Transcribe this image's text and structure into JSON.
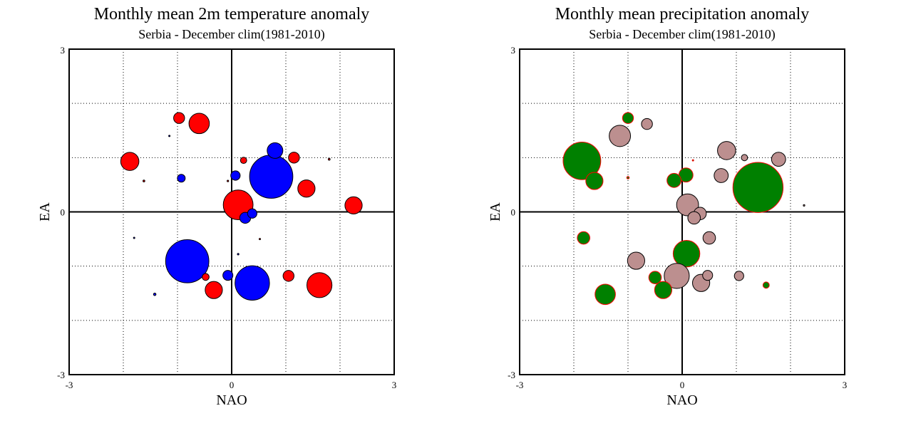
{
  "chart_data": [
    {
      "type": "scatter",
      "title": "Monthly mean 2m temperature anomaly",
      "subtitle": "Serbia - December  clim(1981-2010)",
      "xlabel": "NAO",
      "ylabel": "EA",
      "xlim": [
        -3,
        3
      ],
      "ylim": [
        -3,
        3
      ],
      "xticks": [
        "-3",
        "0",
        "3"
      ],
      "yticks": [
        "-3",
        "0",
        "3"
      ],
      "grid": true,
      "bubble_fill": "size-scaled circles",
      "colors": {
        "positive": "#ff0000",
        "negative": "#0000ff",
        "outline": "#000000"
      },
      "points": [
        {
          "x": -0.97,
          "y": 1.73,
          "size": 0.35,
          "sign": "positive"
        },
        {
          "x": -0.6,
          "y": 1.63,
          "size": 0.65,
          "sign": "positive"
        },
        {
          "x": -1.15,
          "y": 1.4,
          "size": 0.04,
          "sign": "negative"
        },
        {
          "x": -1.88,
          "y": 0.93,
          "size": 0.58,
          "sign": "positive"
        },
        {
          "x": -1.62,
          "y": 0.57,
          "size": 0.06,
          "sign": "positive"
        },
        {
          "x": -0.93,
          "y": 0.62,
          "size": 0.25,
          "sign": "negative"
        },
        {
          "x": 0.8,
          "y": 1.13,
          "size": 0.5,
          "sign": "negative"
        },
        {
          "x": 1.15,
          "y": 1.0,
          "size": 0.35,
          "sign": "positive"
        },
        {
          "x": 1.8,
          "y": 0.97,
          "size": 0.06,
          "sign": "positive"
        },
        {
          "x": 0.22,
          "y": 0.95,
          "size": 0.2,
          "sign": "positive"
        },
        {
          "x": 0.07,
          "y": 0.67,
          "size": 0.3,
          "sign": "negative"
        },
        {
          "x": -0.07,
          "y": 0.57,
          "size": 0.05,
          "sign": "positive"
        },
        {
          "x": 0.73,
          "y": 0.65,
          "size": 1.38,
          "sign": "negative"
        },
        {
          "x": 1.38,
          "y": 0.43,
          "size": 0.55,
          "sign": "positive"
        },
        {
          "x": 2.25,
          "y": 0.12,
          "size": 0.55,
          "sign": "positive"
        },
        {
          "x": 0.12,
          "y": 0.13,
          "size": 0.95,
          "sign": "positive"
        },
        {
          "x": 0.38,
          "y": -0.03,
          "size": 0.3,
          "sign": "negative"
        },
        {
          "x": 0.25,
          "y": -0.11,
          "size": 0.35,
          "sign": "negative"
        },
        {
          "x": -1.8,
          "y": -0.48,
          "size": 0.03,
          "sign": "negative"
        },
        {
          "x": 0.52,
          "y": -0.5,
          "size": 0.04,
          "sign": "positive"
        },
        {
          "x": 0.12,
          "y": -0.78,
          "size": 0.05,
          "sign": "negative"
        },
        {
          "x": -0.82,
          "y": -0.91,
          "size": 1.38,
          "sign": "negative"
        },
        {
          "x": -0.48,
          "y": -1.2,
          "size": 0.22,
          "sign": "positive"
        },
        {
          "x": -0.07,
          "y": -1.17,
          "size": 0.32,
          "sign": "negative"
        },
        {
          "x": -0.33,
          "y": -1.44,
          "size": 0.55,
          "sign": "positive"
        },
        {
          "x": 0.38,
          "y": -1.31,
          "size": 1.1,
          "sign": "negative"
        },
        {
          "x": 1.05,
          "y": -1.18,
          "size": 0.35,
          "sign": "positive"
        },
        {
          "x": 1.62,
          "y": -1.35,
          "size": 0.8,
          "sign": "positive"
        },
        {
          "x": -1.42,
          "y": -1.52,
          "size": 0.08,
          "sign": "negative"
        }
      ]
    },
    {
      "type": "scatter",
      "title": "Monthly mean precipitation anomaly",
      "subtitle": "Serbia - December  clim(1981-2010)",
      "xlabel": "NAO",
      "ylabel": "EA",
      "xlim": [
        -3,
        3
      ],
      "ylim": [
        -3,
        3
      ],
      "xticks": [
        "-3",
        "0",
        "3"
      ],
      "yticks": [
        "-3",
        "0",
        "3"
      ],
      "grid": true,
      "bubble_fill": "size-scaled circles",
      "colors": {
        "positive": "#008000",
        "negative": "#bc8f8f",
        "outline_positive": "#ff0000",
        "outline_negative": "#000000"
      },
      "points": [
        {
          "x": -1.0,
          "y": 1.73,
          "size": 0.35,
          "sign": "positive"
        },
        {
          "x": -0.65,
          "y": 1.62,
          "size": 0.35,
          "sign": "negative"
        },
        {
          "x": -1.15,
          "y": 1.4,
          "size": 0.68,
          "sign": "negative"
        },
        {
          "x": -1.85,
          "y": 0.94,
          "size": 1.2,
          "sign": "positive"
        },
        {
          "x": -1.62,
          "y": 0.57,
          "size": 0.55,
          "sign": "positive"
        },
        {
          "x": -1.0,
          "y": 0.63,
          "size": 0.08,
          "sign": "positive"
        },
        {
          "x": 0.82,
          "y": 1.13,
          "size": 0.58,
          "sign": "negative"
        },
        {
          "x": 1.15,
          "y": 1.0,
          "size": 0.2,
          "sign": "negative"
        },
        {
          "x": 1.78,
          "y": 0.97,
          "size": 0.45,
          "sign": "negative"
        },
        {
          "x": 0.2,
          "y": 0.95,
          "size": 0.03,
          "sign": "positive"
        },
        {
          "x": 0.07,
          "y": 0.68,
          "size": 0.45,
          "sign": "positive"
        },
        {
          "x": -0.15,
          "y": 0.58,
          "size": 0.45,
          "sign": "positive"
        },
        {
          "x": 0.72,
          "y": 0.67,
          "size": 0.45,
          "sign": "negative"
        },
        {
          "x": 1.4,
          "y": 0.45,
          "size": 1.6,
          "sign": "positive"
        },
        {
          "x": 2.25,
          "y": 0.12,
          "size": 0.05,
          "sign": "negative"
        },
        {
          "x": 0.1,
          "y": 0.13,
          "size": 0.7,
          "sign": "negative"
        },
        {
          "x": 0.33,
          "y": -0.03,
          "size": 0.4,
          "sign": "negative"
        },
        {
          "x": 0.22,
          "y": -0.11,
          "size": 0.4,
          "sign": "negative"
        },
        {
          "x": -1.82,
          "y": -0.48,
          "size": 0.4,
          "sign": "positive"
        },
        {
          "x": 0.5,
          "y": -0.48,
          "size": 0.4,
          "sign": "negative"
        },
        {
          "x": 0.08,
          "y": -0.77,
          "size": 0.85,
          "sign": "positive"
        },
        {
          "x": -0.85,
          "y": -0.9,
          "size": 0.55,
          "sign": "negative"
        },
        {
          "x": -0.5,
          "y": -1.21,
          "size": 0.4,
          "sign": "positive"
        },
        {
          "x": -0.1,
          "y": -1.18,
          "size": 0.8,
          "sign": "negative"
        },
        {
          "x": -0.35,
          "y": -1.44,
          "size": 0.55,
          "sign": "positive"
        },
        {
          "x": 0.35,
          "y": -1.31,
          "size": 0.55,
          "sign": "negative"
        },
        {
          "x": 1.05,
          "y": -1.18,
          "size": 0.3,
          "sign": "negative"
        },
        {
          "x": 0.47,
          "y": -1.17,
          "size": 0.32,
          "sign": "negative"
        },
        {
          "x": 1.55,
          "y": -1.35,
          "size": 0.2,
          "sign": "positive"
        },
        {
          "x": -1.42,
          "y": -1.52,
          "size": 0.65,
          "sign": "positive"
        }
      ]
    }
  ]
}
